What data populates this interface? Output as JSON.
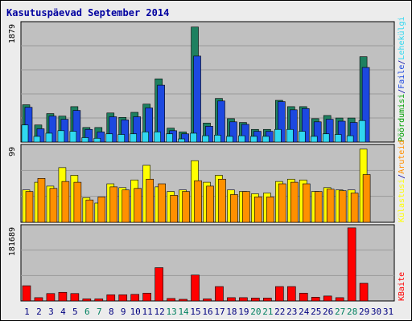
{
  "chart_data": {
    "type": "bar",
    "title": "Kasutuspäevad September 2014",
    "categories": [
      "1",
      "2",
      "3",
      "4",
      "5",
      "6",
      "7",
      "8",
      "9",
      "10",
      "11",
      "12",
      "13",
      "14",
      "15",
      "16",
      "17",
      "18",
      "19",
      "20",
      "21",
      "22",
      "23",
      "24",
      "25",
      "26",
      "27",
      "28",
      "29",
      "30",
      "31"
    ],
    "weekend_days": [
      "6",
      "7",
      "13",
      "14",
      "20",
      "21",
      "27",
      "28"
    ],
    "panels": [
      {
        "id": "top",
        "max_label": "1879",
        "ymax": 1879,
        "series": [
          {
            "name": "Lehekülgi",
            "color": "#1e8060",
            "values": [
              590,
              270,
              450,
              410,
              560,
              230,
              230,
              460,
              390,
              470,
              600,
              1000,
              220,
              160,
              1820,
              300,
              690,
              370,
              310,
              200,
              200,
              660,
              560,
              560,
              370,
              420,
              380,
              380,
              1350,
              0,
              0
            ]
          },
          {
            "name": "Faile",
            "color": "#1c48e0",
            "values": [
              550,
              210,
              410,
              360,
              500,
              200,
              160,
              400,
              350,
              400,
              540,
              900,
              180,
              130,
              1360,
              250,
              650,
              320,
              280,
              170,
              170,
              640,
              510,
              530,
              320,
              360,
              330,
              310,
              1180,
              0,
              0
            ]
          },
          {
            "name": "Pöördumisi",
            "color": "#30d8f0",
            "values": [
              270,
              90,
              140,
              180,
              170,
              70,
              60,
              130,
              120,
              130,
              160,
              160,
              130,
              50,
              140,
              100,
              110,
              90,
              100,
              90,
              90,
              200,
              200,
              170,
              90,
              130,
              120,
              100,
              340,
              0,
              0
            ]
          }
        ]
      },
      {
        "id": "middle",
        "max_label": "99",
        "ymax": 99,
        "series": [
          {
            "name": "Külastusi",
            "color": "#ffff00",
            "values": [
              42,
              52,
              47,
              71,
              61,
              32,
              25,
              50,
              45,
              55,
              74,
              46,
              40,
              42,
              80,
              52,
              61,
              42,
              40,
              37,
              38,
              53,
              56,
              55,
              40,
              45,
              42,
              42,
              95,
              0,
              0
            ]
          },
          {
            "name": "Aruteid",
            "color": "#ff9000",
            "values": [
              40,
              57,
              44,
              53,
              52,
              29,
              33,
              46,
              42,
              44,
              56,
              50,
              35,
              40,
              54,
              47,
              56,
              36,
              40,
              33,
              33,
              50,
              52,
              50,
              40,
              43,
              41,
              38,
              62,
              0,
              0
            ]
          }
        ]
      },
      {
        "id": "bottom",
        "max_label": "181689",
        "ymax": 181689,
        "series": [
          {
            "name": "KBaite",
            "color": "#ff0000",
            "values": [
              37000,
              8000,
              18000,
              21000,
              18000,
              5000,
              5000,
              15000,
              15000,
              16000,
              19000,
              81000,
              6000,
              4000,
              63000,
              5000,
              35000,
              8000,
              8000,
              7000,
              7000,
              35000,
              35000,
              19000,
              9000,
              12000,
              8000,
              178000,
              43000,
              0,
              0
            ]
          }
        ]
      }
    ],
    "right_labels": {
      "top": [
        {
          "text": "Pöördumisi",
          "color": "#00a000"
        },
        {
          "text": "/",
          "color": "#0000a0"
        },
        {
          "text": "Faile",
          "color": "#1c48e0"
        },
        {
          "text": "/",
          "color": "#0000a0"
        },
        {
          "text": "Lehekülgi",
          "color": "#30d8f0"
        }
      ],
      "middle": [
        {
          "text": "Külastusi",
          "color": "#ffff00"
        },
        {
          "text": "/",
          "color": "#0000a0"
        },
        {
          "text": "Aruteid",
          "color": "#ff9000"
        }
      ],
      "bottom": [
        {
          "text": "KBaite",
          "color": "#ff0000"
        }
      ]
    },
    "colors": {
      "background": "#ececec",
      "plot_background": "#c0c0c0",
      "title": "#0000a0",
      "weekday_label": "#000080",
      "weekend_label": "#008060"
    }
  }
}
